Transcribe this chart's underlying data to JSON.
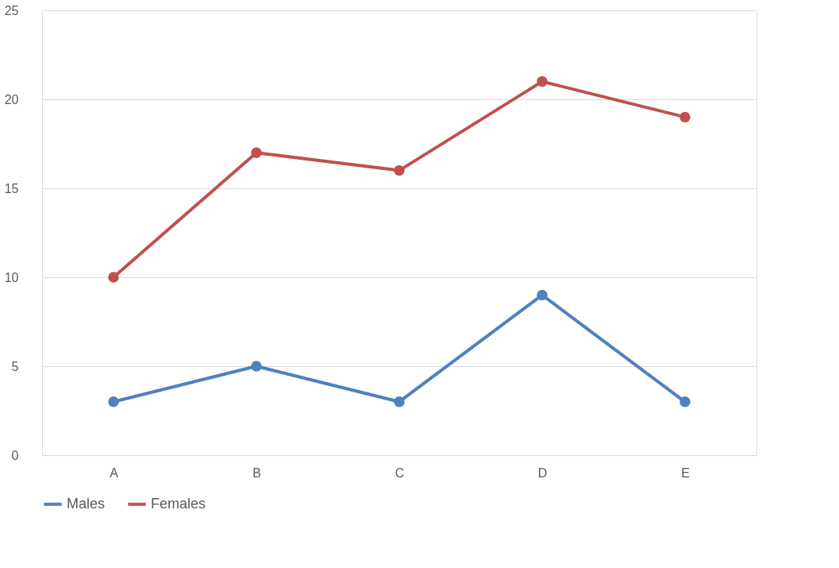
{
  "chart_data": {
    "type": "line",
    "categories": [
      "A",
      "B",
      "C",
      "D",
      "E"
    ],
    "series": [
      {
        "name": "Males",
        "color": "#4f81bd",
        "values": [
          3,
          5,
          3,
          9,
          3
        ]
      },
      {
        "name": "Females",
        "color": "#c0504d",
        "values": [
          10,
          17,
          16,
          21,
          19
        ]
      }
    ],
    "ylim": [
      0,
      25
    ],
    "yticks": [
      0,
      5,
      10,
      15,
      20,
      25
    ],
    "grid": "y",
    "legend": "bottom",
    "marker": "circle",
    "line_style": "solid"
  }
}
